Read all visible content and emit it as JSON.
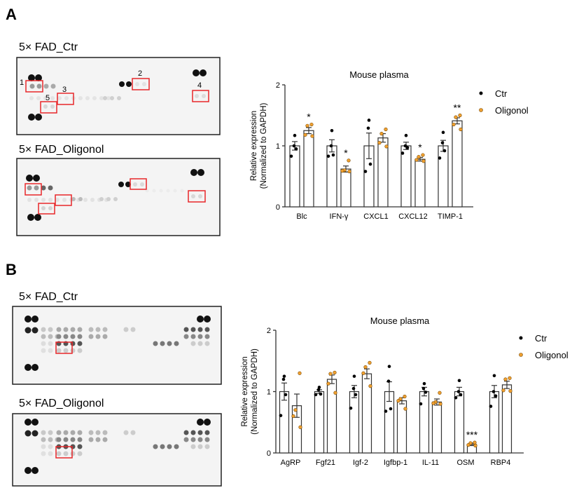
{
  "panels": [
    {
      "letter": "A",
      "blots": [
        {
          "title": "5× FAD_Ctr",
          "box_labels": [
            "1",
            "2",
            "3",
            "4",
            "5"
          ]
        },
        {
          "title": "5× FAD_Oligonol"
        }
      ]
    },
    {
      "letter": "B",
      "blots": [
        {
          "title": "5× FAD_Ctr"
        },
        {
          "title": "5× FAD_Oligonol"
        }
      ]
    }
  ],
  "colors": {
    "ctr": "#000000",
    "oligonol": "#f0a030",
    "box": "#e8262a"
  },
  "chart_data": [
    {
      "type": "bar",
      "title": "Mouse plasma",
      "ylabel": "Relative expression\n(Normalized to GAPDH)",
      "ylabel_lines": [
        "Relative expression",
        "(Normalized to GAPDH)"
      ],
      "ylim": [
        0,
        2
      ],
      "yticks": [
        "0",
        "1",
        "2"
      ],
      "grid": false,
      "legend_placement": "top-right",
      "categories": [
        "Blc",
        "IFN-γ",
        "CXCL1",
        "CXCL12",
        "TIMP-1"
      ],
      "significance": [
        "*",
        "*",
        "",
        "*",
        "**"
      ],
      "series": [
        {
          "name": "Ctr",
          "values": [
            1.0,
            1.0,
            1.0,
            1.0,
            1.0
          ],
          "sem": [
            0.07,
            0.1,
            0.21,
            0.06,
            0.09
          ],
          "points": [
            [
              1.17,
              1.0,
              0.95,
              0.83
            ],
            [
              1.25,
              1.0,
              0.85,
              0.83
            ],
            [
              1.42,
              1.29,
              0.7,
              0.58
            ],
            [
              1.17,
              1.0,
              0.97,
              0.88
            ],
            [
              1.22,
              1.05,
              0.92,
              0.8
            ]
          ]
        },
        {
          "name": "Oligonol",
          "values": [
            1.25,
            0.62,
            1.13,
            0.78,
            1.41
          ],
          "sem": [
            0.05,
            0.05,
            0.07,
            0.03,
            0.05
          ],
          "points": [
            [
              1.35,
              1.33,
              1.18,
              1.16
            ],
            [
              0.76,
              0.6,
              0.59,
              0.58
            ],
            [
              1.27,
              1.2,
              1.05,
              0.99
            ],
            [
              0.85,
              0.82,
              0.77,
              0.75
            ],
            [
              1.5,
              1.47,
              1.35,
              1.27
            ]
          ]
        }
      ]
    },
    {
      "type": "bar",
      "title": "Mouse plasma",
      "ylabel_lines": [
        "Relative expression",
        "(Normalized to GAPDH)"
      ],
      "ylim": [
        0,
        2
      ],
      "yticks": [
        "0",
        "1",
        "2"
      ],
      "grid": false,
      "legend_placement": "top-right",
      "categories": [
        "AgRP",
        "Fgf21",
        "Igf-2",
        "Igfbp-1",
        "IL-11",
        "OSM",
        "RBP4"
      ],
      "significance": [
        "",
        "",
        "",
        "",
        "",
        "***",
        ""
      ],
      "series": [
        {
          "name": "Ctr",
          "values": [
            1.0,
            1.0,
            1.0,
            1.0,
            1.0,
            1.0,
            1.0
          ],
          "sem": [
            0.14,
            0.03,
            0.1,
            0.16,
            0.07,
            0.07,
            0.1
          ],
          "points": [
            [
              1.25,
              1.2,
              0.95,
              0.61
            ],
            [
              1.07,
              1.03,
              0.96,
              0.95
            ],
            [
              1.25,
              1.05,
              0.95,
              0.73
            ],
            [
              1.41,
              1.17,
              0.72,
              0.68
            ],
            [
              1.13,
              1.05,
              0.99,
              0.8
            ],
            [
              1.18,
              1.0,
              0.95,
              0.9
            ],
            [
              1.26,
              1.0,
              0.93,
              0.76
            ]
          ]
        },
        {
          "name": "Oligonol",
          "values": [
            0.77,
            1.2,
            1.29,
            0.85,
            0.83,
            0.14,
            1.11
          ],
          "sem": [
            0.19,
            0.07,
            0.08,
            0.05,
            0.05,
            0.02,
            0.06
          ],
          "points": [
            [
              1.3,
              0.7,
              0.6,
              0.42
            ],
            [
              1.31,
              1.29,
              1.13,
              0.98
            ],
            [
              1.47,
              1.4,
              1.3,
              1.09
            ],
            [
              0.92,
              0.88,
              0.85,
              0.72
            ],
            [
              0.98,
              0.83,
              0.81,
              0.8
            ],
            [
              0.17,
              0.16,
              0.13,
              0.12
            ],
            [
              1.22,
              1.2,
              1.02,
              1.01
            ]
          ]
        }
      ]
    }
  ]
}
